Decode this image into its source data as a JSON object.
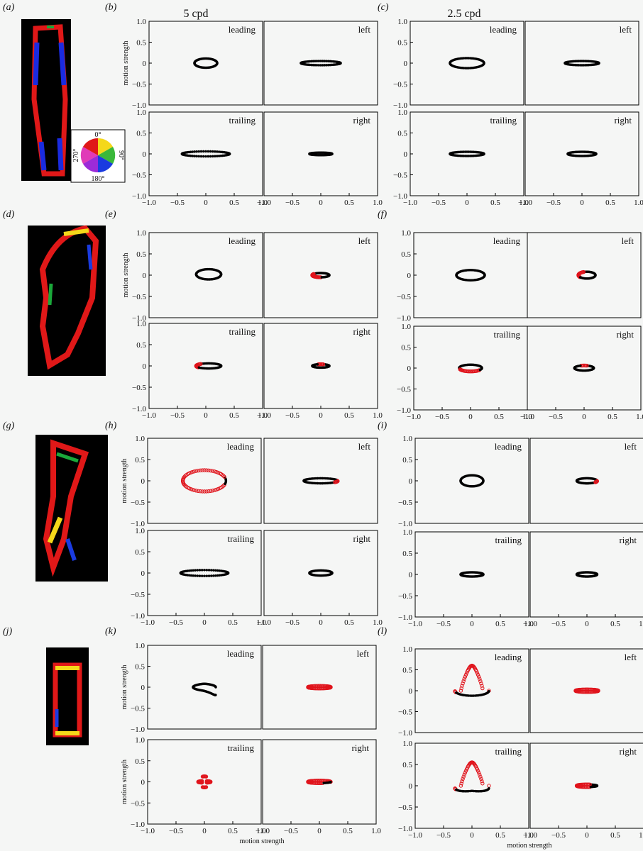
{
  "column_headings": {
    "col1": "5 cpd",
    "col2": "2.5 cpd"
  },
  "panel_labels": [
    "(a)",
    "(b)",
    "(c)",
    "(d)",
    "(e)",
    "(f)",
    "(g)",
    "(h)",
    "(i)",
    "(j)",
    "(k)",
    "(l)"
  ],
  "axis_label": "motion strength",
  "colour_wheel": {
    "top": "0°",
    "right": "90°",
    "bottom": "180°",
    "left": "270°"
  },
  "colors": {
    "black_points": "#000000",
    "red_points": "#e0141c"
  },
  "chart_data": {
    "type": "scatter",
    "xlim": [
      -1.0,
      1.0
    ],
    "ylim": [
      -1.0,
      1.0
    ],
    "x_ticks": [
      "−1.0",
      "−0.5",
      "0",
      "0.5",
      "1.0"
    ],
    "y_ticks": [
      "1.0",
      "0.5",
      "0",
      "−0.5",
      "−1.0"
    ],
    "subplot_titles": [
      "leading",
      "left",
      "trailing",
      "right"
    ],
    "groups": [
      {
        "panel": "(b)",
        "cpd": "5 cpd",
        "plots": [
          {
            "title": "leading",
            "shape": "closed",
            "cx": 0,
            "cy": 0,
            "rx": 0.2,
            "ry": 0.11,
            "red": []
          },
          {
            "title": "left",
            "shape": "closed",
            "cx": 0,
            "cy": 0,
            "rx": 0.35,
            "ry": 0.05,
            "red": []
          },
          {
            "title": "trailing",
            "shape": "closed",
            "cx": 0,
            "cy": 0,
            "rx": 0.42,
            "ry": 0.06,
            "red": []
          },
          {
            "title": "right",
            "shape": "closed",
            "cx": 0,
            "cy": 0,
            "rx": 0.2,
            "ry": 0.03,
            "red": []
          }
        ]
      },
      {
        "panel": "(c)",
        "cpd": "2.5 cpd",
        "plots": [
          {
            "title": "leading",
            "shape": "closed",
            "cx": 0,
            "cy": 0,
            "rx": 0.3,
            "ry": 0.12,
            "red": []
          },
          {
            "title": "left",
            "shape": "closed",
            "cx": 0,
            "cy": 0,
            "rx": 0.3,
            "ry": 0.05,
            "red": []
          },
          {
            "title": "trailing",
            "shape": "closed",
            "cx": 0,
            "cy": 0,
            "rx": 0.3,
            "ry": 0.05,
            "red": []
          },
          {
            "title": "right",
            "shape": "closed",
            "cx": 0,
            "cy": 0,
            "rx": 0.25,
            "ry": 0.05,
            "red": []
          }
        ]
      },
      {
        "panel": "(e)",
        "cpd": "5 cpd",
        "plots": [
          {
            "title": "leading",
            "shape": "closed",
            "cx": 0.05,
            "cy": 0.02,
            "rx": 0.22,
            "ry": 0.12,
            "red": []
          },
          {
            "title": "left",
            "shape": "closed",
            "cx": 0,
            "cy": 0,
            "rx": 0.15,
            "ry": 0.05,
            "red": [
              0.4,
              0.75
            ]
          },
          {
            "title": "trailing",
            "shape": "closed",
            "cx": 0.05,
            "cy": 0,
            "rx": 0.22,
            "ry": 0.06,
            "red": [
              0.35,
              0.6
            ]
          },
          {
            "title": "right",
            "shape": "closed",
            "cx": 0,
            "cy": 0,
            "rx": 0.15,
            "ry": 0.04,
            "red": [
              0.2,
              0.3
            ]
          }
        ]
      },
      {
        "panel": "(f)",
        "cpd": "2.5 cpd",
        "plots": [
          {
            "title": "leading",
            "shape": "closed",
            "cx": 0,
            "cy": 0,
            "rx": 0.25,
            "ry": 0.12,
            "red": []
          },
          {
            "title": "left",
            "shape": "closed",
            "cx": 0.05,
            "cy": 0,
            "rx": 0.15,
            "ry": 0.08,
            "red": [
              0.3,
              0.6
            ]
          },
          {
            "title": "trailing",
            "shape": "closed",
            "cx": 0,
            "cy": 0,
            "rx": 0.2,
            "ry": 0.08,
            "red": [
              0.55,
              0.9
            ]
          },
          {
            "title": "right",
            "shape": "closed",
            "cx": 0,
            "cy": 0,
            "rx": 0.17,
            "ry": 0.06,
            "red": [
              0.2,
              0.3
            ]
          }
        ]
      },
      {
        "panel": "(h)",
        "cpd": "5 cpd",
        "plots": [
          {
            "title": "leading",
            "shape": "closed",
            "cx": 0,
            "cy": 0,
            "rx": 0.38,
            "ry": 0.25,
            "red": [
              0.05,
              0.95
            ]
          },
          {
            "title": "left",
            "shape": "closed",
            "cx": 0,
            "cy": 0,
            "rx": 0.3,
            "ry": 0.06,
            "red": [
              0.9,
              1.0
            ]
          },
          {
            "title": "trailing",
            "shape": "closed",
            "cx": 0,
            "cy": 0,
            "rx": 0.42,
            "ry": 0.07,
            "red": []
          },
          {
            "title": "right",
            "shape": "closed",
            "cx": 0,
            "cy": 0,
            "rx": 0.2,
            "ry": 0.06,
            "red": []
          }
        ]
      },
      {
        "panel": "(i)",
        "cpd": "2.5 cpd",
        "plots": [
          {
            "title": "leading",
            "shape": "closed",
            "cx": 0,
            "cy": 0,
            "rx": 0.2,
            "ry": 0.13,
            "red": []
          },
          {
            "title": "left",
            "shape": "closed",
            "cx": 0,
            "cy": 0,
            "rx": 0.18,
            "ry": 0.06,
            "red": [
              0.9,
              1.0
            ]
          },
          {
            "title": "trailing",
            "shape": "closed",
            "cx": 0,
            "cy": 0,
            "rx": 0.2,
            "ry": 0.05,
            "red": []
          },
          {
            "title": "right",
            "shape": "closed",
            "cx": 0,
            "cy": 0,
            "rx": 0.18,
            "ry": 0.05,
            "red": []
          }
        ]
      },
      {
        "panel": "(k)",
        "cpd": "5 cpd",
        "plots": [
          {
            "title": "leading",
            "shape": "arrow",
            "cx": 0,
            "cy": 0,
            "rx": 0.2,
            "ry": 0.25,
            "red": []
          },
          {
            "title": "left",
            "shape": "closed",
            "cx": 0,
            "cy": 0,
            "rx": 0.2,
            "ry": 0.03,
            "red": [
              0.0,
              1.0
            ]
          },
          {
            "title": "trailing",
            "shape": "cross",
            "cx": 0,
            "cy": 0,
            "rx": 0.18,
            "ry": 0.15,
            "red": [
              0.0,
              1.0
            ]
          },
          {
            "title": "right",
            "shape": "closed",
            "cx": 0,
            "cy": 0,
            "rx": 0.2,
            "ry": 0.03,
            "red": [
              0.0,
              0.8
            ]
          }
        ]
      },
      {
        "panel": "(l)",
        "cpd": "2.5 cpd",
        "plots": [
          {
            "title": "leading",
            "shape": "bell",
            "cx": 0,
            "cy": 0,
            "rx": 0.3,
            "ry": 0.6,
            "red": [
              0.0,
              0.55
            ]
          },
          {
            "title": "left",
            "shape": "closed",
            "cx": 0,
            "cy": 0,
            "rx": 0.2,
            "ry": 0.03,
            "red": [
              0.0,
              1.0
            ]
          },
          {
            "title": "trailing",
            "shape": "bell2",
            "cx": 0,
            "cy": 0,
            "rx": 0.3,
            "ry": 0.55,
            "red": [
              0.0,
              0.55
            ]
          },
          {
            "title": "right",
            "shape": "closed",
            "cx": 0,
            "cy": 0,
            "rx": 0.18,
            "ry": 0.03,
            "red": [
              0.2,
              0.8
            ]
          }
        ]
      }
    ]
  }
}
